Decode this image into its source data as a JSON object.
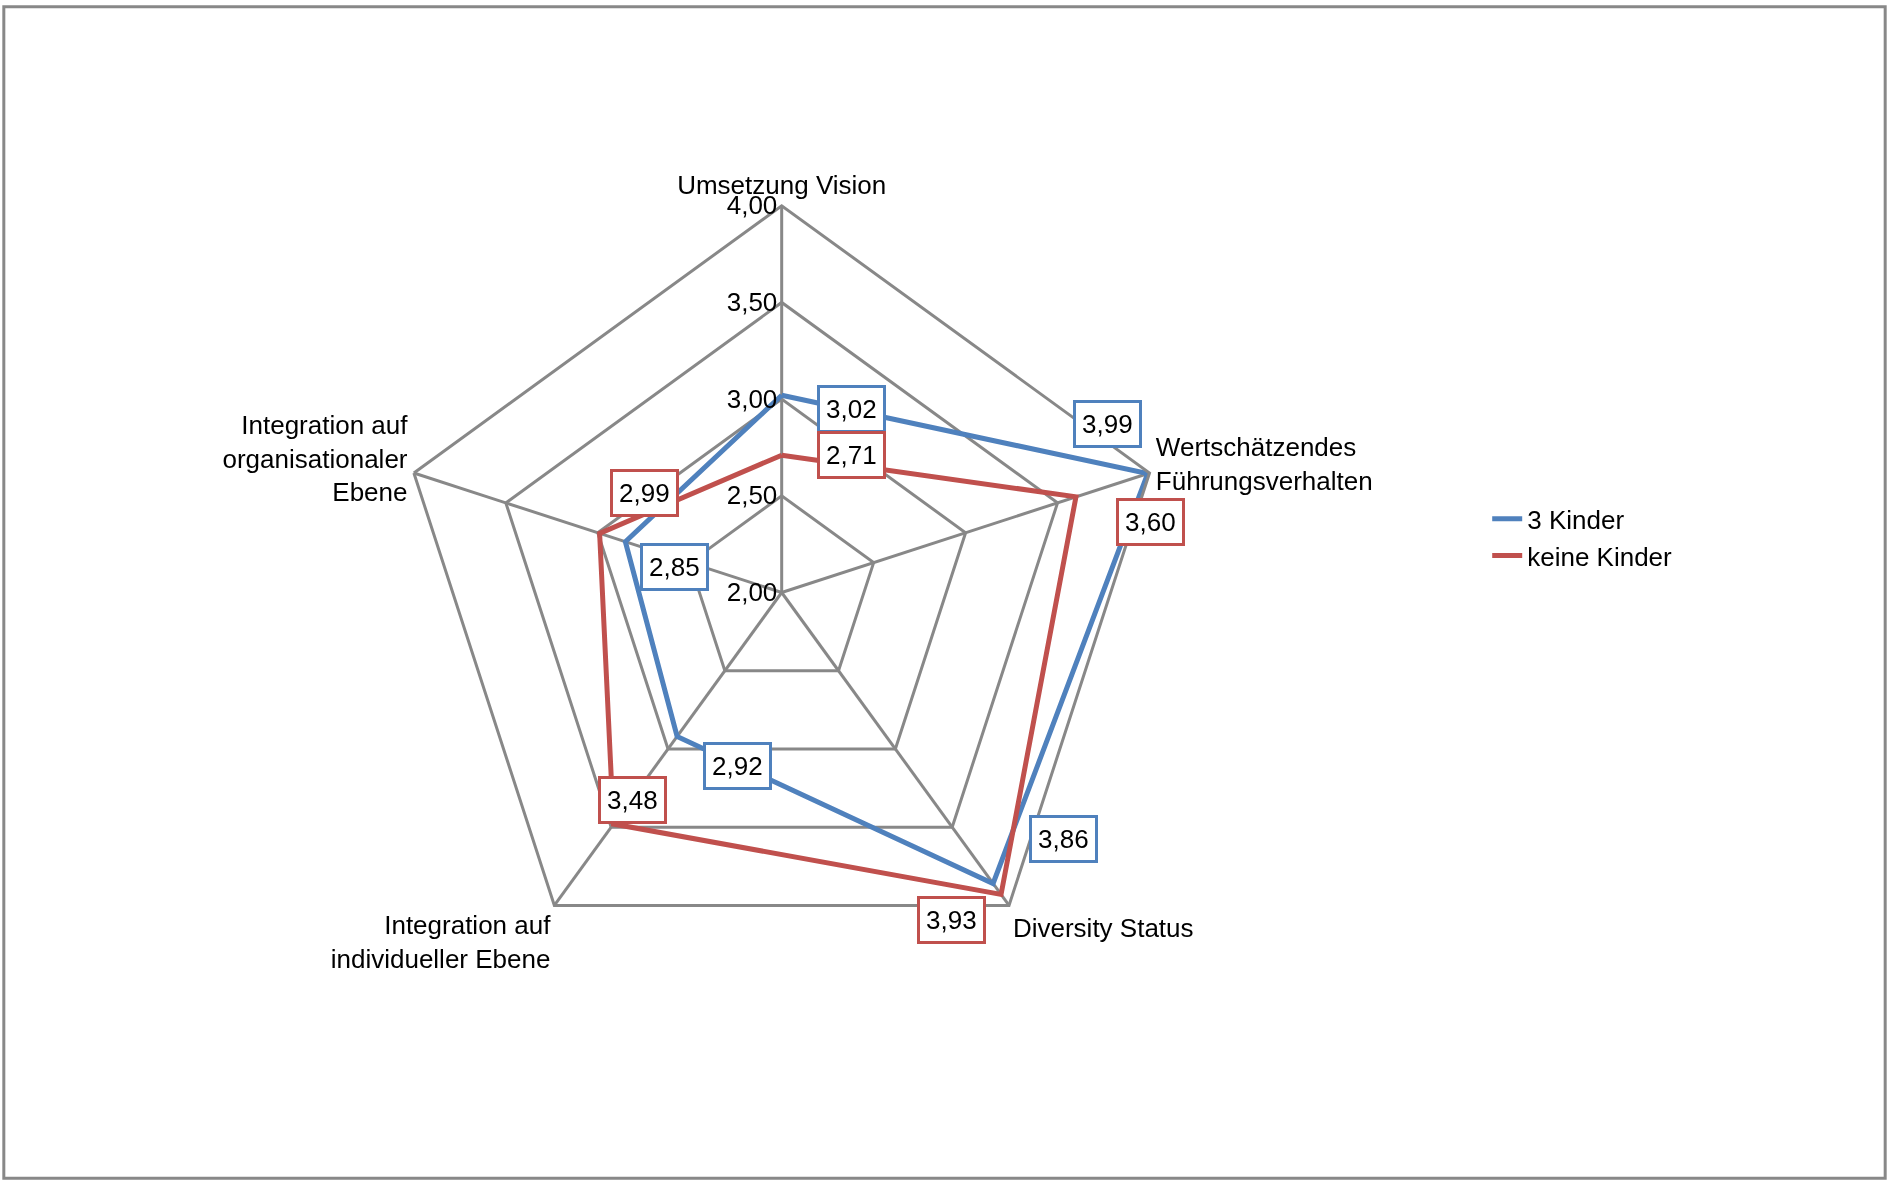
{
  "chart_data": {
    "type": "radar",
    "categories": [
      "Umsetzung Vision",
      "Wertschätzendes\nFührungsverhalten",
      "Diversity Status",
      "Integration auf\nindividueller Ebene",
      "Integration auf\norganisationaler\nEbene"
    ],
    "series": [
      {
        "name": "3 Kinder",
        "color": "#4f81bd",
        "values": [
          3.02,
          3.99,
          3.86,
          2.92,
          2.85
        ],
        "value_labels": [
          "3,02",
          "3,99",
          "3,86",
          "2,92",
          "2,85"
        ]
      },
      {
        "name": "keine Kinder",
        "color": "#c0504d",
        "values": [
          2.71,
          3.6,
          3.93,
          3.48,
          2.99
        ],
        "value_labels": [
          "2,71",
          "3,60",
          "3,93",
          "3,48",
          "2,99"
        ]
      }
    ],
    "ylim": [
      2,
      4
    ],
    "yticks": [
      {
        "value": 2,
        "label": "2,00"
      },
      {
        "value": 2.5,
        "label": "2,50"
      },
      {
        "value": 3,
        "label": "3,00"
      },
      {
        "value": 3.5,
        "label": "3,50"
      },
      {
        "value": 4,
        "label": "4,00"
      }
    ],
    "grid": true,
    "legend": "right",
    "marker": "none",
    "line_style": "solid"
  }
}
